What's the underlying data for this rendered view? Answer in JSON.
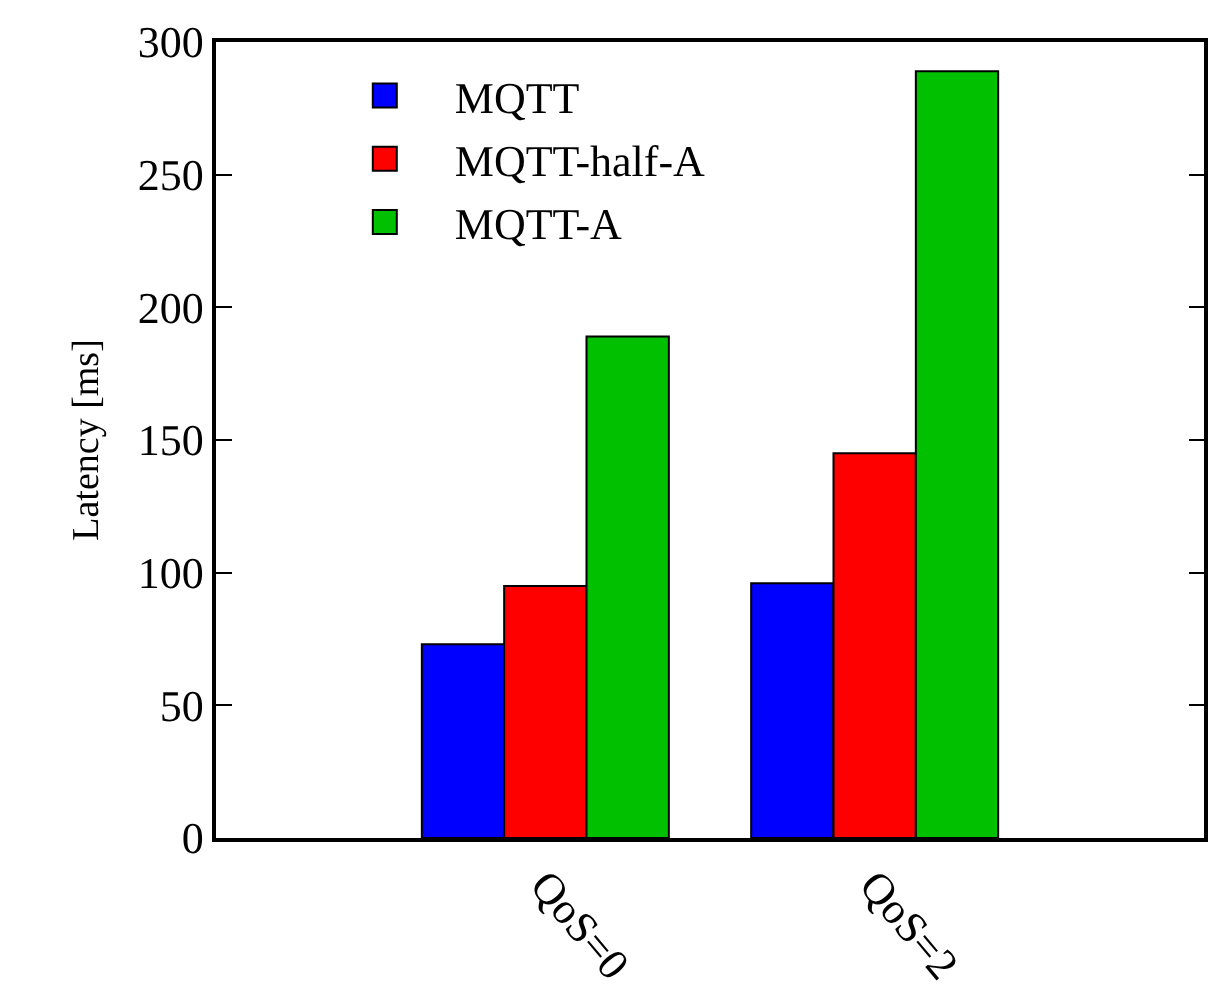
{
  "chart_data": {
    "type": "bar",
    "ylabel": "Latency [ms]",
    "categories": [
      "QoS=0",
      "QoS=2"
    ],
    "series": [
      {
        "name": "MQTT",
        "color": "#0000ff",
        "values": [
          73,
          96
        ]
      },
      {
        "name": "MQTT-half-A",
        "color": "#ff0000",
        "values": [
          95,
          145
        ]
      },
      {
        "name": "MQTT-A",
        "color": "#00c000",
        "values": [
          189,
          289
        ]
      }
    ],
    "ylim": [
      0,
      300
    ],
    "yticks": [
      0,
      50,
      100,
      150,
      200,
      250,
      300
    ],
    "legend": "top left"
  }
}
